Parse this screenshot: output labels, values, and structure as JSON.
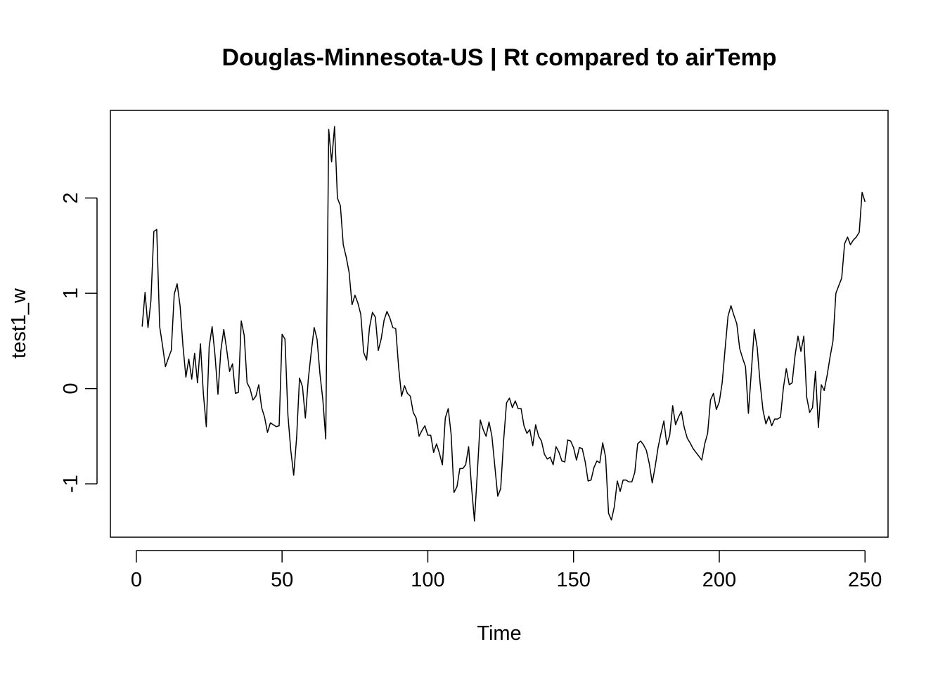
{
  "chart_data": {
    "type": "line",
    "title": "Douglas-Minnesota-US | Rt compared to airTemp",
    "xlabel": "Time",
    "ylabel": "test1_w",
    "xlim": [
      -8.9,
      257.9
    ],
    "ylim": [
      -1.56,
      2.92
    ],
    "x_ticks": [
      0,
      50,
      100,
      150,
      200,
      250
    ],
    "y_ticks": [
      -1,
      0,
      1,
      2
    ],
    "grid": false,
    "legend": "none",
    "line_color": "#000000",
    "x_start": 2,
    "values": [
      0.65,
      1.01,
      0.64,
      0.92,
      1.65,
      1.67,
      0.65,
      0.45,
      0.23,
      0.32,
      0.4,
      0.99,
      1.1,
      0.87,
      0.45,
      0.12,
      0.31,
      0.1,
      0.37,
      0.06,
      0.47,
      -0.05,
      -0.4,
      0.44,
      0.65,
      0.35,
      -0.06,
      0.4,
      0.62,
      0.41,
      0.18,
      0.26,
      -0.05,
      -0.04,
      0.71,
      0.56,
      0.06,
      0.0,
      -0.12,
      -0.08,
      0.04,
      -0.2,
      -0.3,
      -0.46,
      -0.36,
      -0.38,
      -0.4,
      -0.39,
      0.57,
      0.52,
      -0.28,
      -0.65,
      -0.91,
      -0.51,
      0.11,
      0.02,
      -0.31,
      0.1,
      0.38,
      0.64,
      0.52,
      0.15,
      -0.12,
      -0.53,
      2.72,
      2.38,
      2.75,
      2.0,
      1.92,
      1.51,
      1.38,
      1.22,
      0.88,
      0.98,
      0.9,
      0.78,
      0.38,
      0.3,
      0.64,
      0.8,
      0.75,
      0.4,
      0.52,
      0.72,
      0.81,
      0.74,
      0.64,
      0.63,
      0.22,
      -0.08,
      0.03,
      -0.05,
      -0.08,
      -0.25,
      -0.31,
      -0.5,
      -0.44,
      -0.39,
      -0.49,
      -0.49,
      -0.67,
      -0.58,
      -0.68,
      -0.8,
      -0.31,
      -0.21,
      -0.48,
      -1.09,
      -1.03,
      -0.84,
      -0.84,
      -0.8,
      -0.61,
      -1.03,
      -1.39,
      -0.88,
      -0.33,
      -0.43,
      -0.5,
      -0.35,
      -0.5,
      -0.82,
      -1.13,
      -1.05,
      -0.55,
      -0.15,
      -0.1,
      -0.2,
      -0.13,
      -0.21,
      -0.21,
      -0.39,
      -0.47,
      -0.43,
      -0.6,
      -0.38,
      -0.5,
      -0.55,
      -0.69,
      -0.74,
      -0.72,
      -0.8,
      -0.61,
      -0.67,
      -0.76,
      -0.77,
      -0.54,
      -0.55,
      -0.62,
      -0.75,
      -0.62,
      -0.63,
      -0.77,
      -0.97,
      -0.96,
      -0.83,
      -0.76,
      -0.78,
      -0.57,
      -0.72,
      -1.31,
      -1.38,
      -1.24,
      -0.97,
      -1.08,
      -0.96,
      -0.96,
      -0.98,
      -0.98,
      -0.88,
      -0.58,
      -0.55,
      -0.59,
      -0.65,
      -0.79,
      -0.99,
      -0.82,
      -0.62,
      -0.47,
      -0.34,
      -0.59,
      -0.49,
      -0.18,
      -0.38,
      -0.3,
      -0.24,
      -0.41,
      -0.52,
      -0.57,
      -0.63,
      -0.67,
      -0.71,
      -0.75,
      -0.58,
      -0.47,
      -0.12,
      -0.05,
      -0.22,
      -0.14,
      0.06,
      0.42,
      0.76,
      0.87,
      0.77,
      0.68,
      0.42,
      0.32,
      0.23,
      -0.26,
      0.18,
      0.62,
      0.43,
      0.06,
      -0.23,
      -0.37,
      -0.29,
      -0.39,
      -0.32,
      -0.32,
      -0.3,
      0.01,
      0.21,
      0.04,
      0.06,
      0.35,
      0.55,
      0.39,
      0.55,
      -0.09,
      -0.25,
      -0.2,
      0.18,
      -0.41,
      0.04,
      -0.02,
      0.14,
      0.33,
      0.5,
      1.0,
      1.08,
      1.16,
      1.52,
      1.59,
      1.51,
      1.56,
      1.59,
      1.64,
      2.06,
      1.96
    ]
  }
}
